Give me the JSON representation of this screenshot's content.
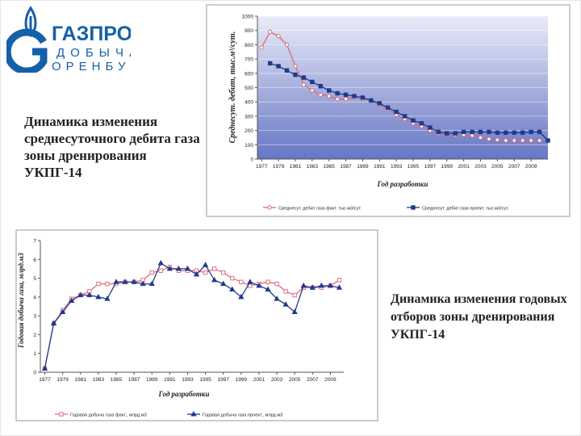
{
  "logo": {
    "brand": "ГАЗПРОМ",
    "line2": "ДОБЫЧА",
    "line3": "ОРЕНБУРГ",
    "color": "#1660a8"
  },
  "captions": {
    "top": "Динамика изменения среднесуточного дебита газа зоны дренирования УКПГ-14",
    "bottom": "Динамика изменения годовых отборов зоны дренирования УКПГ-14"
  },
  "chart_data": [
    {
      "type": "line",
      "ylabel": "Среднесут. дебит, тыс.м³/сут.",
      "xlabel": "Год разработки",
      "ylim": [
        0,
        1000
      ],
      "yticks": [
        0,
        100,
        200,
        300,
        400,
        500,
        600,
        700,
        800,
        900,
        1000
      ],
      "xtick_labels": [
        "1977",
        "1979",
        "1981",
        "1983",
        "1985",
        "1987",
        "1989",
        "1991",
        "1993",
        "1995",
        "1997",
        "1999",
        "2001",
        "2003",
        "2005",
        "2007",
        "2009"
      ],
      "grid": true,
      "background": "gradient blue",
      "legend_position": "bottom",
      "series": [
        {
          "name": "Среднесут. дебит газа факт. тыс.м3/сут.",
          "color": "#d86a7a",
          "marker": "circle",
          "x": [
            1977,
            1978,
            1979,
            1980,
            1981,
            1982,
            1983,
            1984,
            1985,
            1986,
            1987,
            1988,
            1989,
            1990,
            1991,
            1992,
            1993,
            1994,
            1995,
            1996,
            1997,
            1998,
            1999,
            2000,
            2001,
            2002,
            2003,
            2004,
            2005,
            2006,
            2007,
            2008,
            2009,
            2010
          ],
          "values": [
            780,
            890,
            860,
            800,
            650,
            520,
            480,
            450,
            440,
            420,
            420,
            430,
            420,
            410,
            380,
            350,
            310,
            280,
            250,
            230,
            200,
            180,
            175,
            170,
            170,
            165,
            150,
            140,
            135,
            130,
            130,
            130,
            130,
            130
          ]
        },
        {
          "name": "Среднесут. дебит газа проект. тыс.м3/сут.",
          "color": "#1f3a8c",
          "marker": "square",
          "x": [
            1978,
            1979,
            1980,
            1981,
            1982,
            1983,
            1984,
            1985,
            1986,
            1987,
            1988,
            1989,
            1990,
            1991,
            1992,
            1993,
            1994,
            1995,
            1996,
            1997,
            1998,
            1999,
            2000,
            2001,
            2002,
            2003,
            2004,
            2005,
            2006,
            2007,
            2008,
            2009,
            2010,
            2011
          ],
          "values": [
            670,
            650,
            620,
            590,
            570,
            540,
            510,
            480,
            460,
            450,
            440,
            430,
            410,
            390,
            360,
            330,
            300,
            270,
            250,
            220,
            190,
            180,
            180,
            190,
            190,
            190,
            190,
            185,
            185,
            185,
            185,
            190,
            190,
            130
          ]
        }
      ]
    },
    {
      "type": "line",
      "ylabel": "Годовая добыча газа, млрд.м3",
      "xlabel": "Год разработки",
      "ylim": [
        0,
        7
      ],
      "yticks": [
        0,
        1,
        2,
        3,
        4,
        5,
        6,
        7
      ],
      "xtick_labels": [
        "1977",
        "1979",
        "1981",
        "1983",
        "1985",
        "1987",
        "1989",
        "1991",
        "1993",
        "1995",
        "1997",
        "1999",
        "2001",
        "2003",
        "2005",
        "2007",
        "2009"
      ],
      "grid": false,
      "legend_position": "bottom",
      "series": [
        {
          "name": "Годовая добыча газа факт., млрд.м3",
          "color": "#e07080",
          "marker": "square",
          "x": [
            1977,
            1978,
            1979,
            1980,
            1981,
            1982,
            1983,
            1984,
            1985,
            1986,
            1987,
            1988,
            1989,
            1990,
            1991,
            1992,
            1993,
            1994,
            1995,
            1996,
            1997,
            1998,
            1999,
            2000,
            2001,
            2002,
            2003,
            2004,
            2005,
            2006,
            2007,
            2008,
            2009,
            2010
          ],
          "values": [
            0.2,
            2.6,
            3.3,
            3.9,
            4.1,
            4.3,
            4.7,
            4.7,
            4.7,
            4.8,
            4.8,
            4.9,
            5.3,
            5.4,
            5.6,
            5.4,
            5.4,
            5.4,
            5.3,
            5.5,
            5.3,
            5.0,
            4.8,
            4.6,
            4.7,
            4.8,
            4.7,
            4.3,
            4.1,
            4.5,
            4.5,
            4.5,
            4.6,
            4.9
          ]
        },
        {
          "name": "Годовая добыча газа проект., млрд.м3",
          "color": "#1f3a8c",
          "marker": "triangle",
          "x": [
            1977,
            1978,
            1979,
            1980,
            1981,
            1982,
            1983,
            1984,
            1985,
            1986,
            1987,
            1988,
            1989,
            1990,
            1991,
            1992,
            1993,
            1994,
            1995,
            1996,
            1997,
            1998,
            1999,
            2000,
            2001,
            2002,
            2003,
            2004,
            2005,
            2006,
            2007,
            2008,
            2009,
            2010
          ],
          "values": [
            0.2,
            2.6,
            3.2,
            3.8,
            4.1,
            4.1,
            4.0,
            3.9,
            4.8,
            4.8,
            4.8,
            4.7,
            4.7,
            5.8,
            5.5,
            5.5,
            5.5,
            5.2,
            5.7,
            4.9,
            4.7,
            4.4,
            4.0,
            4.8,
            4.6,
            4.4,
            3.9,
            3.6,
            3.2,
            4.6,
            4.5,
            4.6,
            4.6,
            4.5
          ]
        }
      ]
    }
  ]
}
